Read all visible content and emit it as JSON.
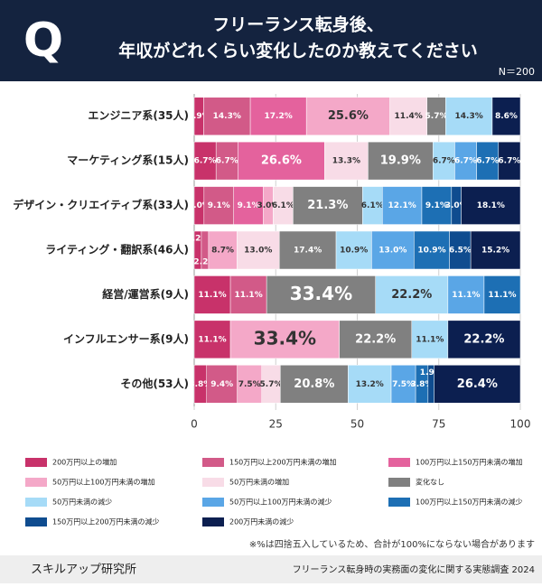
{
  "header": {
    "badge": "Q",
    "title_lines": [
      "フリーランス転身後、",
      "年収がどれくらい変化したのか教えてください"
    ]
  },
  "sample": "N＝200",
  "chart_data": {
    "type": "stacked-barh",
    "categories": [
      "エンジニア系(35人)",
      "マーケティング系(15人)",
      "デザイン・クリエイティブ系(33人)",
      "ライティング・翻訳系(46人)",
      "経営/運営系(9人)",
      "インフルエンサー系(9人)",
      "その他(53人)"
    ],
    "series": [
      {
        "name": "200万円以上の増加",
        "color": "#c8326a",
        "values": [
          2.9,
          6.7,
          3.0,
          2.2,
          11.1,
          11.1,
          3.8
        ],
        "value_labels": [
          "2.9%",
          "6.7%",
          "3.0%",
          "2.2%",
          "11.1%",
          "11.1%",
          "3.8%"
        ]
      },
      {
        "name": "150万円以上200万円未満の増加",
        "color": "#d25a88",
        "values": [
          14.3,
          6.7,
          9.1,
          2.2,
          11.1,
          0,
          9.4
        ],
        "value_labels": [
          "14.3%",
          "6.7%",
          "9.1%",
          "2.2%",
          "11.1%",
          null,
          "9.4%"
        ]
      },
      {
        "name": "100万円以上150万円未満の増加",
        "color": "#e4629d",
        "values": [
          17.2,
          26.6,
          9.1,
          0,
          0,
          0,
          0
        ],
        "value_labels": [
          "17.2%",
          "26.6%",
          "9.1%",
          null,
          null,
          null,
          null
        ]
      },
      {
        "name": "50万円以上100万円未満の増加",
        "color": "#f4a8c8",
        "values": [
          25.6,
          0,
          3.0,
          8.7,
          0,
          33.4,
          7.5
        ],
        "value_labels": [
          "25.6%",
          null,
          "3.0%",
          "8.7%",
          null,
          "33.4%",
          "7.5%"
        ]
      },
      {
        "name": "50万円未満の増加",
        "color": "#f8dce7",
        "values": [
          11.4,
          13.3,
          6.1,
          13.0,
          0,
          0,
          5.7
        ],
        "value_labels": [
          "11.4%",
          "13.3%",
          "6.1%",
          "13.0%",
          null,
          null,
          "5.7%"
        ]
      },
      {
        "name": "変化なし",
        "color": "#808080",
        "values": [
          5.7,
          19.9,
          21.3,
          17.4,
          33.4,
          22.2,
          20.8
        ],
        "value_labels": [
          "5.7%",
          "19.9%",
          "21.3%",
          "17.4%",
          "33.4%",
          "22.2%",
          "20.8%"
        ]
      },
      {
        "name": "50万円未満の減少",
        "color": "#a6dbf7",
        "values": [
          14.3,
          6.7,
          6.1,
          10.9,
          22.2,
          11.1,
          13.2
        ],
        "value_labels": [
          "14.3%",
          "6.7%",
          "6.1%",
          "10.9%",
          "22.2%",
          "11.1%",
          "13.2%"
        ]
      },
      {
        "name": "50万円以上100万円未満の減少",
        "color": "#5aa6e6",
        "values": [
          0,
          6.7,
          12.1,
          13.0,
          11.1,
          0,
          7.5
        ],
        "value_labels": [
          null,
          "6.7%",
          "12.1%",
          "13.0%",
          "11.1%",
          null,
          "7.5%"
        ]
      },
      {
        "name": "100万円以上150万円未満の減少",
        "color": "#1d6fb4",
        "values": [
          0,
          6.7,
          9.1,
          10.9,
          11.1,
          0,
          3.8
        ],
        "value_labels": [
          null,
          "6.7%",
          "9.1%",
          "10.9%",
          "11.1%",
          null,
          "3.8%"
        ]
      },
      {
        "name": "150万円以上200万円未満の減少",
        "color": "#0f4c8f",
        "values": [
          0,
          0,
          3.0,
          6.5,
          0,
          0,
          1.9
        ],
        "value_labels": [
          null,
          null,
          "3.0%",
          "6.5%",
          null,
          null,
          "1.9%"
        ]
      },
      {
        "name": "200万円未満の減少",
        "color": "#0c1f50",
        "values": [
          8.6,
          6.7,
          18.1,
          15.2,
          0,
          22.2,
          26.4
        ],
        "value_labels": [
          "8.6%",
          "6.7%",
          "18.1%",
          "15.2%",
          null,
          "22.2%",
          "26.4%"
        ]
      }
    ],
    "xlim": [
      0,
      100
    ],
    "xticks": [
      0,
      25,
      50,
      75,
      100
    ],
    "grid": true
  },
  "footnote": "※%は四捨五入しているため、合計が100%にならない場合があります",
  "footer": {
    "brand": "スキルアップ研究所",
    "source": "フリーランス転身時の実務面の変化に関する実態調査 2024"
  }
}
